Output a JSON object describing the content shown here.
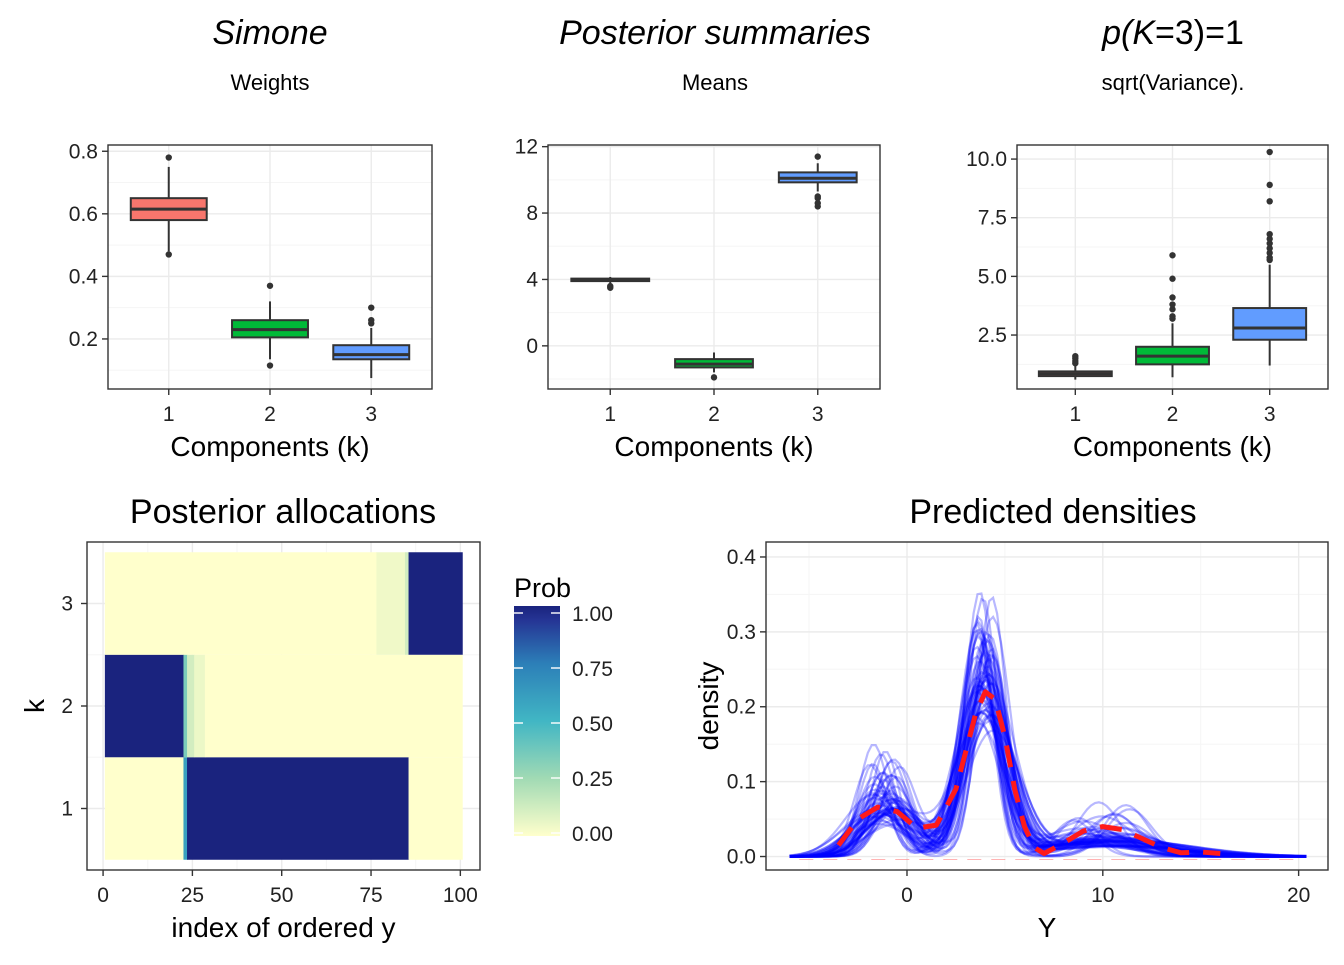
{
  "headings": {
    "col1_title": "Simone",
    "col1_sub": "Weights",
    "col2_title": "Posterior summaries",
    "col2_sub": "Means",
    "col3_title_pre": "p(",
    "col3_title_k": "K",
    "col3_title_post": "=3)=1",
    "col3_sub": "sqrt(Variance)."
  },
  "colors": {
    "comp1": "#F8766D",
    "comp2": "#00BA38",
    "comp3": "#619CFF",
    "density_lines": "#0000FF",
    "mean_density": "#FF1A1A",
    "grid_major": "#EBEBEB",
    "grid_minor": "#F5F5F5",
    "panel_border": "#333333"
  },
  "chart_data": [
    {
      "id": "weights",
      "type": "boxplot",
      "title": "Simone",
      "subtitle": "Weights",
      "xlabel": "Components (k)",
      "ylabel": "",
      "categories": [
        "1",
        "2",
        "3"
      ],
      "yticks": [
        0.2,
        0.4,
        0.6,
        0.8
      ],
      "ytick_labels": [
        "0.2",
        "0.4",
        "0.6",
        "0.8"
      ],
      "ylim": [
        0.04,
        0.82
      ],
      "grid": true,
      "boxes": [
        {
          "q1": 0.58,
          "median": 0.615,
          "q3": 0.65,
          "whisker_low": 0.48,
          "whisker_high": 0.75,
          "outliers": [
            0.47,
            0.78
          ]
        },
        {
          "q1": 0.205,
          "median": 0.23,
          "q3": 0.26,
          "whisker_low": 0.135,
          "whisker_high": 0.32,
          "outliers": [
            0.115,
            0.37
          ]
        },
        {
          "q1": 0.135,
          "median": 0.15,
          "q3": 0.18,
          "whisker_low": 0.075,
          "whisker_high": 0.235,
          "outliers": [
            0.25,
            0.26,
            0.3
          ]
        }
      ]
    },
    {
      "id": "means",
      "type": "boxplot",
      "title": "Posterior summaries",
      "subtitle": "Means",
      "xlabel": "Components (k)",
      "ylabel": "",
      "categories": [
        "1",
        "2",
        "3"
      ],
      "yticks": [
        0,
        4,
        8,
        12
      ],
      "ytick_labels": [
        "0",
        "4",
        "8",
        "12"
      ],
      "ylim": [
        -2.6,
        12.1
      ],
      "grid": true,
      "boxes": [
        {
          "q1": 3.9,
          "median": 3.98,
          "q3": 4.05,
          "whisker_low": 3.75,
          "whisker_high": 4.15,
          "outliers": [
            3.5,
            3.6
          ]
        },
        {
          "q1": -1.3,
          "median": -1.1,
          "q3": -0.8,
          "whisker_low": -1.6,
          "whisker_high": -0.4,
          "outliers": [
            -1.9
          ]
        },
        {
          "q1": 9.85,
          "median": 10.1,
          "q3": 10.45,
          "whisker_low": 9.3,
          "whisker_high": 11.0,
          "outliers": [
            8.4,
            8.6,
            8.9,
            9.0,
            11.4
          ]
        }
      ]
    },
    {
      "id": "sd",
      "type": "boxplot",
      "title": "p(K=3)=1",
      "subtitle": "sqrt(Variance).",
      "xlabel": "Components (k)",
      "ylabel": "",
      "categories": [
        "1",
        "2",
        "3"
      ],
      "yticks": [
        2.5,
        5.0,
        7.5,
        10.0
      ],
      "ytick_labels": [
        "2.5",
        "5.0",
        "7.5",
        "10.0"
      ],
      "ylim": [
        0.2,
        10.6
      ],
      "grid": true,
      "boxes": [
        {
          "q1": 0.75,
          "median": 0.85,
          "q3": 0.95,
          "whisker_low": 0.6,
          "whisker_high": 1.2,
          "outliers": [
            1.3,
            1.4,
            1.5,
            1.6
          ]
        },
        {
          "q1": 1.25,
          "median": 1.6,
          "q3": 2.0,
          "whisker_low": 0.7,
          "whisker_high": 3.0,
          "outliers": [
            3.2,
            3.3,
            3.6,
            3.8,
            4.1,
            4.9,
            5.9
          ]
        },
        {
          "q1": 2.3,
          "median": 2.8,
          "q3": 3.65,
          "whisker_low": 1.2,
          "whisker_high": 5.5,
          "outliers": [
            5.7,
            5.8,
            6.0,
            6.2,
            6.4,
            6.6,
            6.8,
            8.2,
            8.9,
            10.3
          ]
        }
      ]
    },
    {
      "id": "allocations",
      "type": "heatmap",
      "title": "Posterior allocations",
      "xlabel": "index of ordered y",
      "ylabel": "k",
      "xticks": [
        0,
        25,
        50,
        75,
        100
      ],
      "xtick_labels": [
        "0",
        "25",
        "50",
        "75",
        "100"
      ],
      "yticks": [
        1,
        2,
        3
      ],
      "ytick_labels": [
        "1",
        "2",
        "3"
      ],
      "xlim": [
        -4.5,
        105.5
      ],
      "ylim": [
        0.4,
        3.6
      ],
      "rows": [
        {
          "k": 1,
          "segments": [
            {
              "from": 0.5,
              "to": 22.5,
              "prob": 0.0
            },
            {
              "from": 22.5,
              "to": 23.5,
              "prob": 0.6
            },
            {
              "from": 23.5,
              "to": 85.5,
              "prob": 1.0
            },
            {
              "from": 85.5,
              "to": 100.5,
              "prob": 0.0
            }
          ]
        },
        {
          "k": 2,
          "segments": [
            {
              "from": 0.5,
              "to": 22.5,
              "prob": 1.0
            },
            {
              "from": 22.5,
              "to": 23.5,
              "prob": 0.35
            },
            {
              "from": 23.5,
              "to": 25.5,
              "prob": 0.12
            },
            {
              "from": 25.5,
              "to": 28.5,
              "prob": 0.05
            },
            {
              "from": 28.5,
              "to": 100.5,
              "prob": 0.0
            }
          ]
        },
        {
          "k": 3,
          "segments": [
            {
              "from": 0.5,
              "to": 76.5,
              "prob": 0.0
            },
            {
              "from": 76.5,
              "to": 84.5,
              "prob": 0.04
            },
            {
              "from": 84.5,
              "to": 85.5,
              "prob": 0.12
            },
            {
              "from": 85.5,
              "to": 100.5,
              "prob": 1.0
            }
          ]
        }
      ],
      "legend": {
        "title": "Prob",
        "placement": "right",
        "breaks": [
          0.0,
          0.25,
          0.5,
          0.75,
          1.0
        ],
        "labels": [
          "0.00",
          "0.25",
          "0.50",
          "0.75",
          "1.00"
        ],
        "colors": [
          "#FFFFCC",
          "#A1DAB4",
          "#41B6C4",
          "#2C7FB8",
          "#253494",
          "#1A237E"
        ]
      }
    },
    {
      "id": "densities",
      "type": "line",
      "title": "Predicted densities",
      "xlabel": "Y",
      "ylabel": "density",
      "xticks": [
        0,
        10,
        20
      ],
      "xtick_labels": [
        "0",
        "10",
        "20"
      ],
      "yticks": [
        0.0,
        0.1,
        0.2,
        0.3,
        0.4
      ],
      "ytick_labels": [
        "0.0",
        "0.1",
        "0.2",
        "0.3",
        "0.4"
      ],
      "xlim": [
        -7.2,
        21.5
      ],
      "ylim": [
        -0.018,
        0.42
      ],
      "grid": true,
      "mean_curve": {
        "x": [
          -3.5,
          -2.5,
          -1.5,
          -0.5,
          0.5,
          1.5,
          2.5,
          3.0,
          3.5,
          4.0,
          4.5,
          5.0,
          5.5,
          6.0,
          6.5,
          7.0,
          8.0,
          9.0,
          10.0,
          11.0,
          12.0,
          13.0,
          14.0,
          15.0,
          16.0
        ],
        "y": [
          0.015,
          0.05,
          0.066,
          0.06,
          0.038,
          0.042,
          0.09,
          0.14,
          0.19,
          0.22,
          0.21,
          0.16,
          0.09,
          0.04,
          0.012,
          0.004,
          0.018,
          0.034,
          0.04,
          0.036,
          0.024,
          0.012,
          0.005,
          0.006,
          0.004
        ],
        "style": "dashed"
      },
      "sampled_curves": {
        "count": 60,
        "x_range": [
          -6,
          20.5
        ],
        "components": [
          {
            "weight": [
              0.16,
              0.28
            ],
            "mean": [
              -1.9,
              -0.3
            ],
            "sd": [
              0.7,
              1.6
            ]
          },
          {
            "weight": [
              0.5,
              0.74
            ],
            "mean": [
              3.5,
              4.4
            ],
            "sd": [
              0.7,
              1.4
            ]
          },
          {
            "weight": [
              0.1,
              0.22
            ],
            "mean": [
              8.5,
              11.5
            ],
            "sd": [
              1.0,
              4.0
            ]
          }
        ]
      }
    }
  ]
}
